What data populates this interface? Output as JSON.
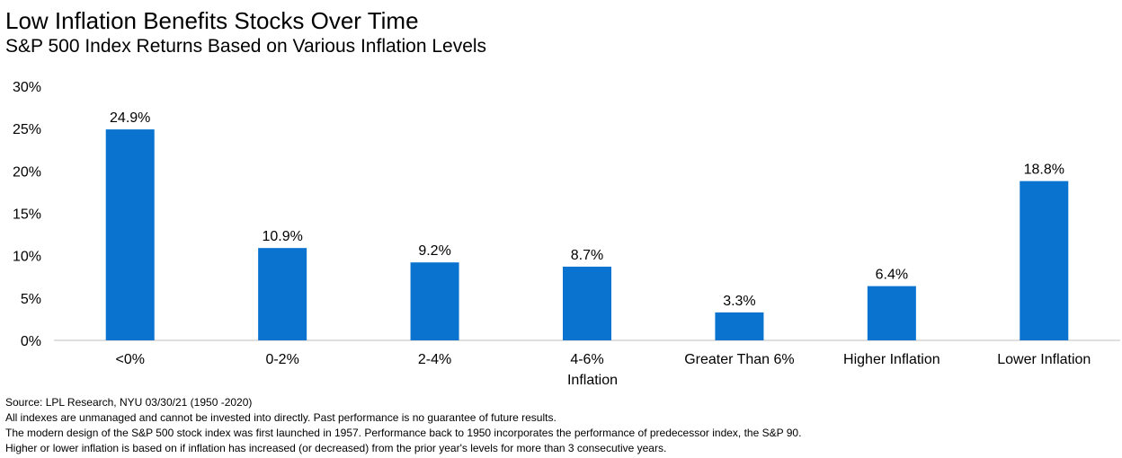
{
  "header": {
    "title": "Low Inflation Benefits Stocks Over Time",
    "subtitle": "S&P 500 Index Returns Based on Various Inflation Levels"
  },
  "chart_data": {
    "type": "bar",
    "title": "Low Inflation Benefits Stocks Over Time",
    "subtitle": "S&P 500 Index Returns Based on Various Inflation Levels",
    "categories": [
      "<0%",
      "0-2%",
      "2-4%",
      "4-6%",
      "Greater Than 6%",
      "Higher Inflation",
      "Lower Inflation"
    ],
    "values": [
      24.9,
      10.9,
      9.2,
      8.7,
      3.3,
      6.4,
      18.8
    ],
    "data_labels": [
      "24.9%",
      "10.9%",
      "9.2%",
      "8.7%",
      "3.3%",
      "6.4%",
      "18.8%"
    ],
    "xlabel": "Inflation",
    "ylabel": "",
    "ylim": [
      0,
      30
    ],
    "yticks": [
      0,
      5,
      10,
      15,
      20,
      25,
      30
    ],
    "ytick_labels": [
      "0%",
      "5%",
      "10%",
      "15%",
      "20%",
      "25%",
      "30%"
    ],
    "grid": false,
    "legend": "none",
    "colors": {
      "bar": "#0a73cf",
      "axis": "#bfbfbf"
    }
  },
  "footnotes": {
    "source": "Source: LPL Research, NYU 03/30/21 (1950 -2020)",
    "line1": "All indexes are unmanaged and cannot be invested into directly. Past performance is no guarantee of future results.",
    "line2": "The modern design of the S&P 500 stock index was first launched in 1957. Performance back to 1950 incorporates the performance of predecessor index, the S&P 90.",
    "line3": "Higher or lower inflation is based on if inflation has increased (or decreased) from the prior year's levels for more than 3 consecutive years."
  }
}
